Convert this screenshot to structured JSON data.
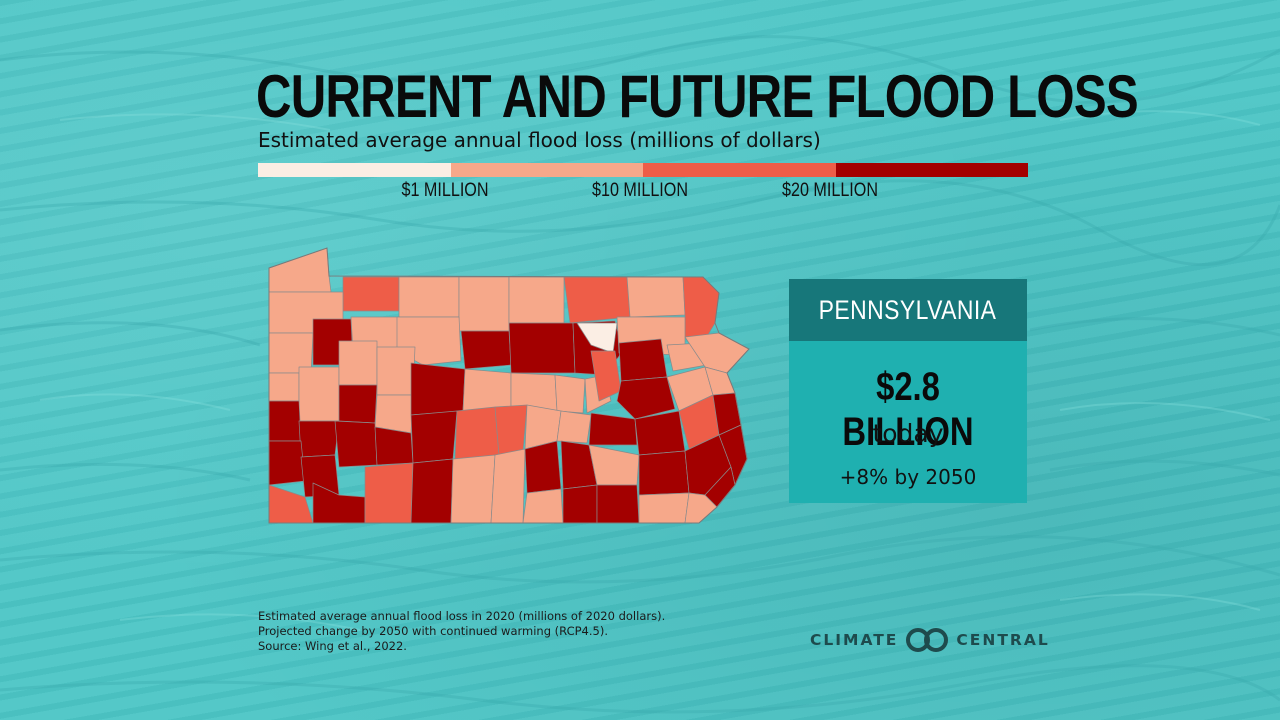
{
  "title": "CURRENT AND FUTURE FLOOD LOSS",
  "subtitle": "Estimated average annual flood loss (millions of dollars)",
  "legend": {
    "colors": [
      "#fbeee4",
      "#f6a88a",
      "#ee5d48",
      "#a30000"
    ],
    "ticks": [
      "$1 MILLION",
      "$10 MILLION",
      "$20 MILLION"
    ]
  },
  "card": {
    "state": "PENNSYLVANIA",
    "amount": "$2.8 BILLION",
    "today_label": "today",
    "change": "+8% by 2050",
    "header_color": "#17777a",
    "body_color": "#1fb0b0"
  },
  "footnotes": [
    "Estimated average annual flood loss in 2020 (millions of 2020 dollars).",
    "Projected change by 2050 with continued warming (RCP4.5).",
    "Source: Wing et al., 2022."
  ],
  "logo": {
    "left": "CLIMATE",
    "right": "CENTRAL",
    "icon": "climate-central-rings-icon"
  },
  "background_color": "#4ec6c6",
  "map": {
    "state": "Pennsylvania",
    "classes": {
      "a": "#fbeee4",
      "b": "#f6a88a",
      "c": "#ee5d48",
      "d": "#a30000"
    }
  }
}
